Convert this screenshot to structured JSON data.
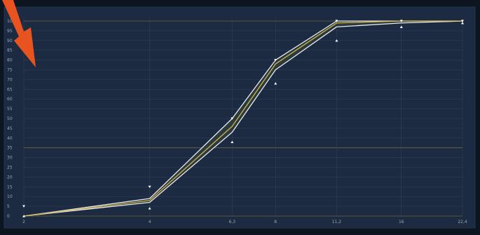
{
  "chart_data": {
    "type": "line",
    "title": "",
    "xlabel": "",
    "ylabel": "",
    "x_scale": "log",
    "x_ticks": [
      "2",
      "4",
      "6,3",
      "8",
      "11,2",
      "16",
      "22,4"
    ],
    "x_tick_values": [
      2,
      4,
      6.3,
      8,
      11.2,
      16,
      22.4
    ],
    "y_ticks": [
      "0",
      "5",
      "10",
      "15",
      "20",
      "25",
      "30",
      "35",
      "40",
      "45",
      "50",
      "55",
      "60",
      "65",
      "70",
      "75",
      "80",
      "85",
      "90",
      "95",
      "100"
    ],
    "ylim": [
      0,
      100
    ],
    "grid": true,
    "series": [
      {
        "role": "center",
        "x": [
          2,
          4,
          6.3,
          8,
          11.2,
          16,
          22.4
        ],
        "values": [
          0,
          8,
          46,
          78,
          99,
          100,
          100
        ]
      },
      {
        "role": "upper-envelope",
        "x": [
          2,
          4,
          6.3,
          8,
          11.2,
          16,
          22.4
        ],
        "values": [
          0,
          9,
          50,
          80,
          100,
          100,
          100
        ]
      },
      {
        "role": "lower-envelope",
        "x": [
          2,
          4,
          6.3,
          8,
          11.2,
          16,
          22.4
        ],
        "values": [
          0,
          7,
          43,
          75,
          97,
          99,
          100
        ]
      }
    ],
    "markers": {
      "upper": [
        {
          "x": 2,
          "y": 5
        },
        {
          "x": 4,
          "y": 15
        },
        {
          "x": 6.3,
          "y": 50
        },
        {
          "x": 8,
          "y": 80
        },
        {
          "x": 11.2,
          "y": 100
        },
        {
          "x": 16,
          "y": 100
        },
        {
          "x": 22.4,
          "y": 100
        }
      ],
      "lower": [
        {
          "x": 2,
          "y": 0
        },
        {
          "x": 4,
          "y": 4
        },
        {
          "x": 6.3,
          "y": 38
        },
        {
          "x": 8,
          "y": 68
        },
        {
          "x": 11.2,
          "y": 90
        },
        {
          "x": 16,
          "y": 97
        },
        {
          "x": 22.4,
          "y": 99
        }
      ]
    }
  },
  "colors": {
    "plot_bg": "#1c2a42",
    "outer_bg": "#0d1520",
    "grid": "#34445c",
    "grid_major": "#6e6a3c",
    "band": "#2e3c3c",
    "envelope": "#e8ecf0",
    "center": "#d4b24a",
    "marker": "#ffffff",
    "arrow": "#e8531f"
  },
  "icons": {
    "annotation": "arrow-icon"
  }
}
